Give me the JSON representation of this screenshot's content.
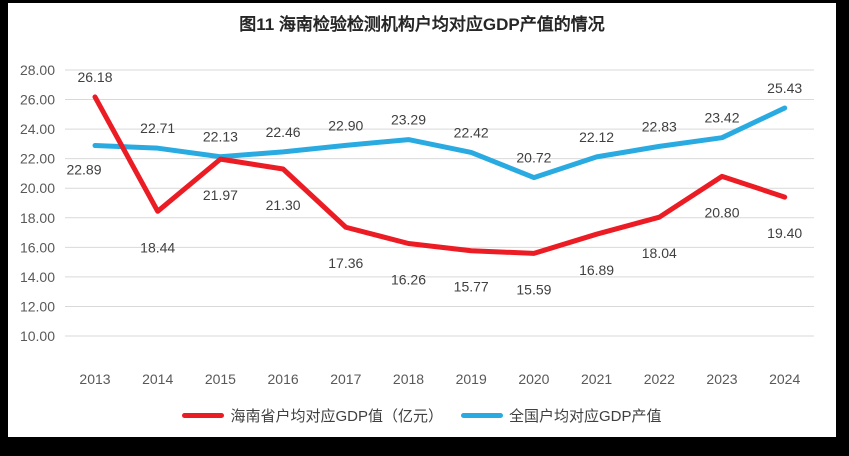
{
  "chart_data": {
    "type": "line",
    "title": "图11 海南检验检测机构户均对应GDP产值的情况",
    "categories": [
      "2013",
      "2014",
      "2015",
      "2016",
      "2017",
      "2018",
      "2019",
      "2020",
      "2021",
      "2022",
      "2023",
      "2024"
    ],
    "series": [
      {
        "name": "海南省户均对应GDP值（亿元）",
        "color": "#EC1C24",
        "values": [
          26.18,
          18.44,
          21.97,
          21.3,
          17.36,
          16.26,
          15.77,
          15.59,
          16.89,
          18.04,
          20.8,
          19.4
        ],
        "label_positions": [
          "above",
          "below",
          "below",
          "below",
          "below",
          "below",
          "below",
          "below",
          "below",
          "below",
          "below",
          "below"
        ]
      },
      {
        "name": "全国户均对应GDP产值",
        "color": "#29ABE2",
        "values": [
          22.89,
          22.71,
          22.13,
          22.46,
          22.9,
          23.29,
          22.42,
          20.72,
          22.12,
          22.83,
          23.42,
          25.43
        ],
        "label_positions": [
          "below_left",
          "above",
          "above",
          "above",
          "above",
          "above",
          "above",
          "above",
          "above",
          "above",
          "above",
          "above"
        ]
      }
    ],
    "ylim": [
      10,
      28
    ],
    "ytick_step": 2,
    "value_decimals": 2,
    "grid": "horizontal",
    "legend_position": "bottom",
    "colors": {
      "gridline": "#D9D9D9",
      "axis_text": "#595959",
      "data_label": "#404040",
      "title_text": "#262626"
    }
  }
}
